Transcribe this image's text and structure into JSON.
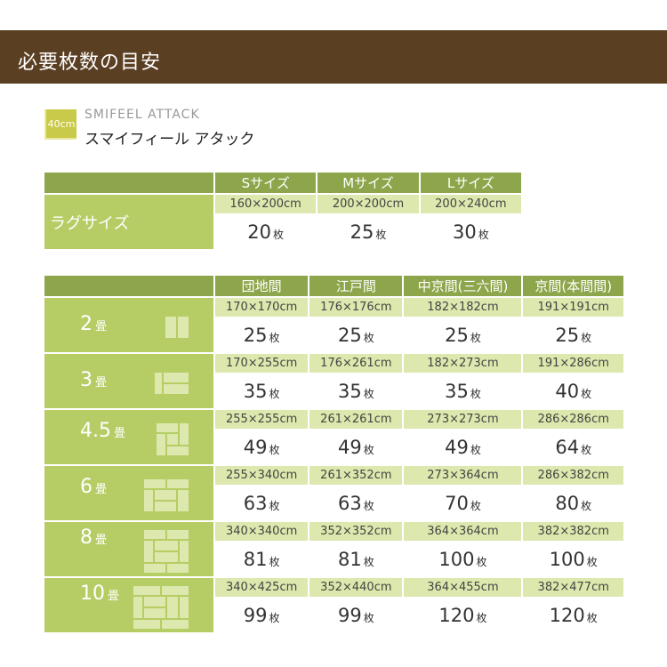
{
  "header": {
    "title": "必要枚数の目安"
  },
  "product": {
    "badge": "40cm",
    "name_en": "SMIFEEL ATTACK",
    "name_jp": "スマイフィール アタック"
  },
  "rug_table": {
    "row_label": "ラグサイズ",
    "unit": "枚",
    "columns": [
      {
        "label": "Sサイズ",
        "size": "160×200cm",
        "count": "20"
      },
      {
        "label": "Mサイズ",
        "size": "200×200cm",
        "count": "25"
      },
      {
        "label": "Lサイズ",
        "size": "200×240cm",
        "count": "30"
      }
    ]
  },
  "tatami_table": {
    "unit": "枚",
    "tatami_unit": "畳",
    "columns": [
      "団地間",
      "江戸間",
      "中京間(三六間)",
      "京間(本間間)"
    ],
    "rows": [
      {
        "label": "2",
        "icon": "tatami-2-icon",
        "cells": [
          {
            "size": "170×170cm",
            "count": "25"
          },
          {
            "size": "176×176cm",
            "count": "25"
          },
          {
            "size": "182×182cm",
            "count": "25"
          },
          {
            "size": "191×191cm",
            "count": "25"
          }
        ]
      },
      {
        "label": "3",
        "icon": "tatami-3-icon",
        "cells": [
          {
            "size": "170×255cm",
            "count": "35"
          },
          {
            "size": "176×261cm",
            "count": "35"
          },
          {
            "size": "182×273cm",
            "count": "35"
          },
          {
            "size": "191×286cm",
            "count": "40"
          }
        ]
      },
      {
        "label": "4.5",
        "icon": "tatami-4.5-icon",
        "cells": [
          {
            "size": "255×255cm",
            "count": "49"
          },
          {
            "size": "261×261cm",
            "count": "49"
          },
          {
            "size": "273×273cm",
            "count": "49"
          },
          {
            "size": "286×286cm",
            "count": "64"
          }
        ]
      },
      {
        "label": "6",
        "icon": "tatami-6-icon",
        "cells": [
          {
            "size": "255×340cm",
            "count": "63"
          },
          {
            "size": "261×352cm",
            "count": "63"
          },
          {
            "size": "273×364cm",
            "count": "70"
          },
          {
            "size": "286×382cm",
            "count": "80"
          }
        ]
      },
      {
        "label": "8",
        "icon": "tatami-8-icon",
        "cells": [
          {
            "size": "340×340cm",
            "count": "81"
          },
          {
            "size": "352×352cm",
            "count": "81"
          },
          {
            "size": "364×364cm",
            "count": "100"
          },
          {
            "size": "382×382cm",
            "count": "100"
          }
        ]
      },
      {
        "label": "10",
        "icon": "tatami-10-icon",
        "cells": [
          {
            "size": "340×425cm",
            "count": "99"
          },
          {
            "size": "352×440cm",
            "count": "99"
          },
          {
            "size": "364×455cm",
            "count": "120"
          },
          {
            "size": "382×477cm",
            "count": "120"
          }
        ]
      }
    ]
  }
}
